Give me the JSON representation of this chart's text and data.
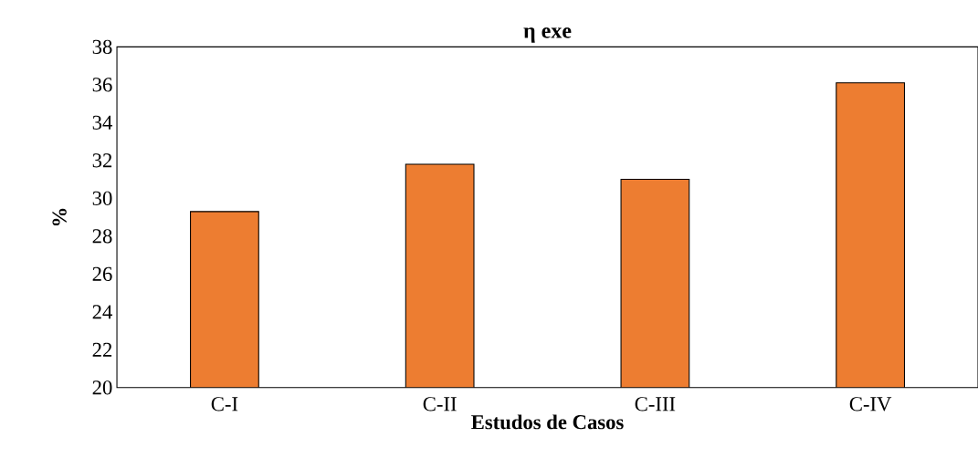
{
  "chart_data": {
    "type": "bar",
    "title": "η exe",
    "xlabel": "Estudos de Casos",
    "ylabel": "%",
    "categories": [
      "C-I",
      "C-II",
      "C-III",
      "C-IV"
    ],
    "values": [
      29.3,
      31.8,
      31.0,
      36.1
    ],
    "color": "#ed7d31",
    "ylim": [
      20,
      38
    ],
    "yticks": [
      20,
      22,
      24,
      26,
      28,
      30,
      32,
      34,
      36,
      38
    ],
    "grid": false
  }
}
